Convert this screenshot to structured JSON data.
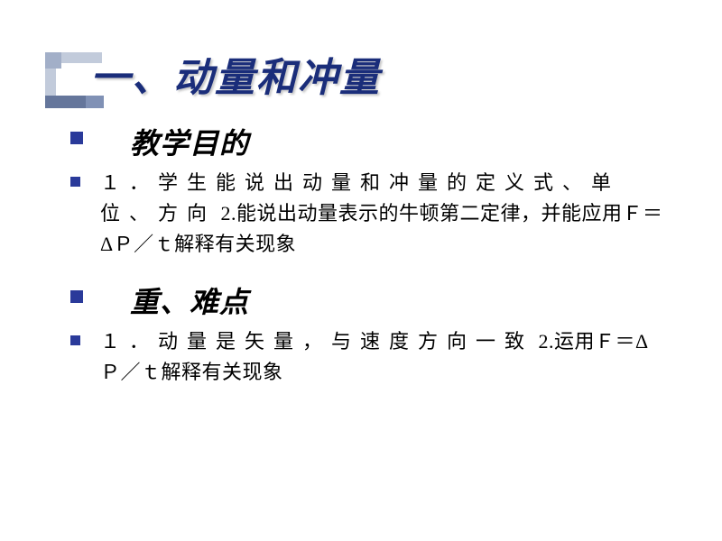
{
  "slide": {
    "title": "一、动量和冲量",
    "title_color": "#1a2d7a",
    "title_fontsize": 44,
    "bullet_color": "#2a3a9a",
    "background_color": "#ffffff",
    "sections": [
      {
        "heading": "教学目的",
        "heading_fontsize": 32,
        "body_lines": [
          {
            "text": "１．学生能说出动量和冲量的定义式、单位、方向",
            "spaced": true
          },
          {
            "text": "2.能说出动量表示的牛顿第二定律，并能应用Ｆ＝ΔＰ／ｔ解释有关现象",
            "spaced": false
          }
        ]
      },
      {
        "heading": "重、难点",
        "heading_fontsize": 32,
        "body_lines": [
          {
            "text": "１．动量是矢量，与速度方向一致",
            "spaced": true
          },
          {
            "text": "2.运用Ｆ＝ΔＰ／ｔ解释有关现象",
            "spaced": false
          }
        ]
      }
    ]
  }
}
